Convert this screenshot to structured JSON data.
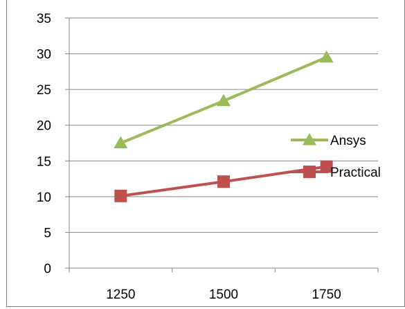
{
  "chart_data": {
    "type": "line",
    "title": "",
    "xlabel": "",
    "ylabel": "",
    "categories": [
      "1250",
      "1500",
      "1750"
    ],
    "ylim": [
      0,
      35
    ],
    "yticks": [
      "0",
      "5",
      "10",
      "15",
      "20",
      "25",
      "30",
      "35"
    ],
    "grid": "horizontal",
    "legend": "right",
    "series": [
      {
        "name": "Ansys",
        "values": [
          17.5,
          23.4,
          29.5
        ],
        "color": "#9BBB59",
        "marker": "triangle"
      },
      {
        "name": "Practical",
        "values": [
          10.1,
          12.1,
          14.2
        ],
        "color": "#C0504D",
        "marker": "square"
      }
    ]
  }
}
